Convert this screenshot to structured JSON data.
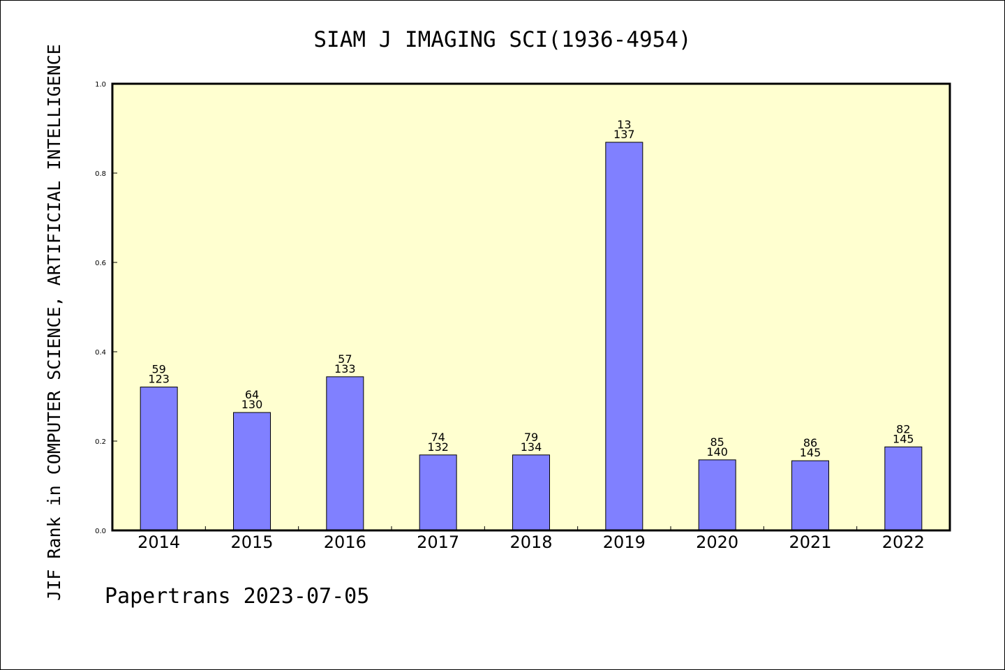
{
  "chart_data": {
    "type": "bar",
    "title": "SIAM J IMAGING SCI(1936-4954)",
    "xlabel": "",
    "ylabel": "JIF Rank in COMPUTER SCIENCE, ARTIFICIAL INTELLIGENCE",
    "ylim": [
      0,
      1.0
    ],
    "yticks": [
      "0.0",
      "0.2",
      "0.4",
      "0.6",
      "0.8",
      "1.0"
    ],
    "grid": false,
    "categories": [
      "2014",
      "2015",
      "2016",
      "2017",
      "2018",
      "2019",
      "2020",
      "2021",
      "2022"
    ],
    "values": [
      0.321,
      0.264,
      0.344,
      0.169,
      0.169,
      0.869,
      0.158,
      0.156,
      0.187
    ],
    "rank": [
      "59",
      "64",
      "57",
      "74",
      "79",
      "13",
      "85",
      "86",
      "82"
    ],
    "total": [
      "123",
      "130",
      "133",
      "132",
      "134",
      "137",
      "140",
      "145",
      "145"
    ],
    "colors": {
      "bar": "#8080ff",
      "plot_bg": "#ffffd0",
      "axis": "#000000"
    }
  },
  "footer": "Papertrans 2023-07-05"
}
